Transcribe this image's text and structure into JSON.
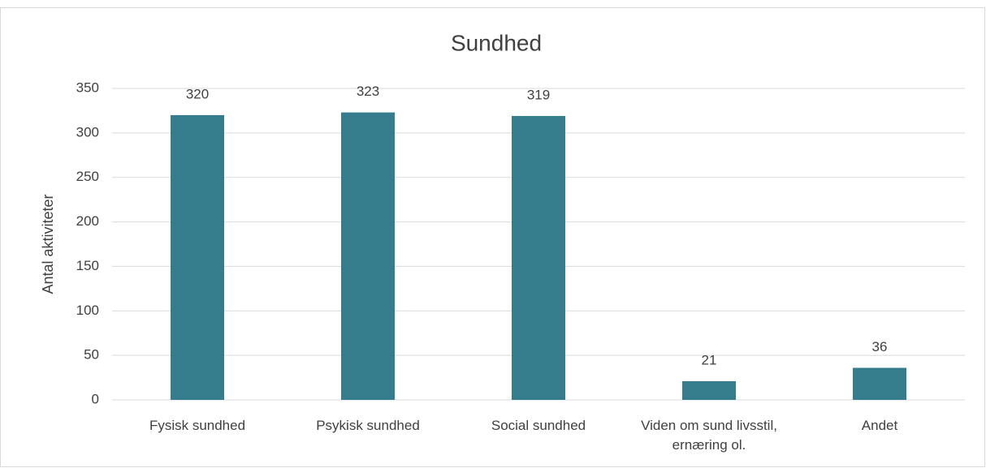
{
  "chart_data": {
    "type": "bar",
    "title": "Sundhed",
    "y_label": "Antal aktiviteter",
    "categories": [
      "Fysisk sundhed",
      "Psykisk sundhed",
      "Social sundhed",
      "Viden om sund livsstil, ernæring ol.",
      "Andet"
    ],
    "values": [
      320,
      323,
      319,
      21,
      36
    ],
    "color": "#357d8d",
    "ylim": [
      0,
      350
    ],
    "yticks": [
      0,
      50,
      100,
      150,
      200,
      250,
      300,
      350
    ],
    "grid": true
  }
}
